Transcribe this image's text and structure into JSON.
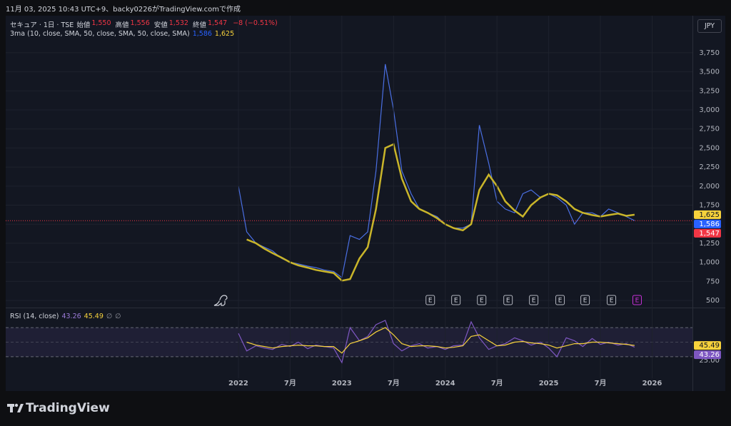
{
  "header": "11月 03, 2025 10:43 UTC+9、backy0226がTradingView.comで作成",
  "currency": "JPY",
  "brand": "TradingView",
  "chart_data": [
    {
      "type": "line",
      "title": "セキュア · 1日 · TSE",
      "ohlc": [
        {
          "label": "始値",
          "value": "1,550"
        },
        {
          "label": "高値",
          "value": "1,556"
        },
        {
          "label": "安値",
          "value": "1,532"
        },
        {
          "label": "終値",
          "value": "1,547"
        }
      ],
      "change": "−8 (−0.51%)",
      "indicator": "3ma (10, close, SMA, 50, close, SMA, 50, close, SMA)",
      "x": [
        2022.0,
        2022.08,
        2022.17,
        2022.25,
        2022.33,
        2022.42,
        2022.5,
        2022.58,
        2022.67,
        2022.75,
        2022.83,
        2022.92,
        2023.0,
        2023.08,
        2023.17,
        2023.25,
        2023.33,
        2023.42,
        2023.5,
        2023.58,
        2023.67,
        2023.75,
        2023.83,
        2023.92,
        2024.0,
        2024.08,
        2024.17,
        2024.25,
        2024.33,
        2024.42,
        2024.5,
        2024.58,
        2024.67,
        2024.75,
        2024.83,
        2024.92,
        2025.0,
        2025.08,
        2025.17,
        2025.25,
        2025.33,
        2025.42,
        2025.5,
        2025.58,
        2025.67,
        2025.75,
        2025.83
      ],
      "series": [
        {
          "color": "#4a6fe3",
          "values": [
            2000,
            1400,
            1250,
            1200,
            1150,
            1050,
            1000,
            980,
            950,
            930,
            900,
            880,
            800,
            1350,
            1300,
            1400,
            2200,
            3600,
            3000,
            2200,
            1900,
            1700,
            1650,
            1600,
            1500,
            1450,
            1450,
            1500,
            2800,
            2300,
            1800,
            1700,
            1650,
            1900,
            1950,
            1850,
            1900,
            1850,
            1750,
            1500,
            1650,
            1650,
            1600,
            1700,
            1650,
            1600,
            1547
          ]
        },
        {
          "color": "#c9b52a",
          "values": [
            null,
            1300,
            1250,
            1180,
            1120,
            1060,
            1000,
            960,
            930,
            900,
            880,
            860,
            760,
            780,
            1050,
            1200,
            1700,
            2500,
            2550,
            2100,
            1800,
            1700,
            1650,
            1580,
            1500,
            1450,
            1420,
            1500,
            1950,
            2150,
            2000,
            1800,
            1680,
            1600,
            1750,
            1850,
            1900,
            1880,
            1800,
            1700,
            1650,
            1620,
            1600,
            1620,
            1640,
            1610,
            1625
          ]
        }
      ],
      "xlim": [
        2019.75,
        2026.39
      ],
      "ylim": [
        416,
        4208
      ],
      "yticks": [
        500,
        750,
        {
          "value": 1000,
          "label": "1,000"
        },
        {
          "value": 1250,
          "label": "1,250"
        },
        {
          "value": 1500,
          "label": "1,500"
        },
        {
          "value": 1750,
          "label": "1,750"
        },
        {
          "value": 2000,
          "label": "2,000"
        },
        {
          "value": 2250,
          "label": "2,250"
        },
        {
          "value": 2500,
          "label": "2,500"
        },
        {
          "value": 2750,
          "label": "2,750"
        },
        {
          "value": 3000,
          "label": "3,000"
        },
        {
          "value": 3250,
          "label": "3,250"
        },
        {
          "value": 3500,
          "label": "3,500"
        },
        {
          "value": 3750,
          "label": "3,750"
        }
      ],
      "grid": true,
      "last_values": [
        {
          "value": 1625,
          "label": "1,625",
          "color": "#f7d23c"
        },
        {
          "value": 1586,
          "label": "1,586",
          "color": "#2962ff"
        },
        {
          "value": 1547,
          "label": "1,547",
          "color": "#f23645"
        }
      ],
      "events": [
        {
          "x": 2023.855,
          "label": "E"
        },
        {
          "x": 2024.103,
          "label": "E"
        },
        {
          "x": 2024.352,
          "label": "E"
        },
        {
          "x": 2024.607,
          "label": "E"
        },
        {
          "x": 2024.855,
          "label": "E"
        },
        {
          "x": 2025.11,
          "label": "E"
        },
        {
          "x": 2025.352,
          "label": "E"
        },
        {
          "x": 2025.607,
          "label": "E"
        },
        {
          "x": 2025.855,
          "label": "E"
        }
      ]
    },
    {
      "type": "line",
      "title": "RSI (14, close)",
      "legend_values": [
        "43.26",
        "45.49",
        "∅",
        "∅"
      ],
      "x": [
        2022.0,
        2022.08,
        2022.17,
        2022.25,
        2022.33,
        2022.42,
        2022.5,
        2022.58,
        2022.67,
        2022.75,
        2022.83,
        2022.92,
        2023.0,
        2023.08,
        2023.17,
        2023.25,
        2023.33,
        2023.42,
        2023.5,
        2023.58,
        2023.67,
        2023.75,
        2023.83,
        2023.92,
        2024.0,
        2024.08,
        2024.17,
        2024.25,
        2024.33,
        2024.42,
        2024.5,
        2024.58,
        2024.67,
        2024.75,
        2024.83,
        2024.92,
        2025.0,
        2025.08,
        2025.17,
        2025.25,
        2025.33,
        2025.42,
        2025.5,
        2025.58,
        2025.67,
        2025.75,
        2025.83
      ],
      "series": [
        {
          "color": "#7e57c2",
          "values": [
            62,
            38,
            45,
            42,
            40,
            47,
            44,
            50,
            41,
            46,
            44,
            42,
            22,
            70,
            52,
            58,
            74,
            80,
            48,
            38,
            45,
            48,
            42,
            44,
            40,
            45,
            46,
            78,
            56,
            40,
            45,
            48,
            56,
            52,
            46,
            50,
            42,
            30,
            56,
            52,
            44,
            55,
            47,
            50,
            46,
            48,
            43.26
          ]
        },
        {
          "color": "#f7d23c",
          "values": [
            null,
            50,
            46,
            44,
            42,
            44,
            45,
            46,
            45,
            45,
            44,
            44,
            35,
            48,
            52,
            56,
            64,
            70,
            60,
            48,
            44,
            45,
            45,
            44,
            42,
            43,
            45,
            58,
            60,
            52,
            45,
            46,
            50,
            51,
            49,
            48,
            46,
            42,
            45,
            48,
            48,
            50,
            50,
            49,
            48,
            47,
            45.49
          ]
        }
      ],
      "xlim": [
        2019.75,
        2026.39
      ],
      "xticks": [
        2022,
        {
          "value": 2022.5,
          "label": "7月"
        },
        2023,
        {
          "value": 2023.5,
          "label": "7月"
        },
        2024,
        {
          "value": 2024.5,
          "label": "7月"
        },
        2025,
        {
          "value": 2025.5,
          "label": "7月"
        },
        2026
      ],
      "ylim": [
        0.5,
        95.6
      ],
      "yticks": [
        {
          "value": 25,
          "label": "25.00"
        }
      ],
      "hlines": [
        30,
        50,
        70
      ],
      "last_values": [
        {
          "value": 45.49,
          "label": "45.49",
          "color": "#f7d23c"
        },
        {
          "value": 43.26,
          "label": "43.26",
          "color": "#7e57c2"
        }
      ]
    }
  ]
}
